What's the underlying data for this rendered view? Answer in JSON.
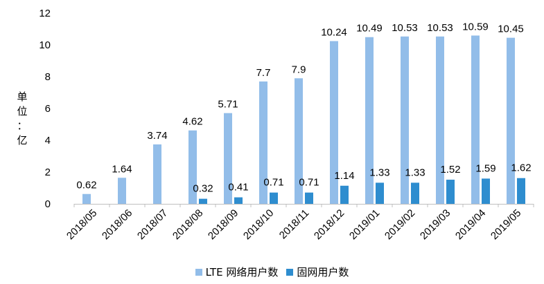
{
  "chart_data": {
    "type": "bar",
    "categories": [
      "2018/05",
      "2018/06",
      "2018/07",
      "2018/08",
      "2018/09",
      "2018/10",
      "2018/11",
      "2018/12",
      "2019/01",
      "2019/02",
      "2019/03",
      "2019/04",
      "2019/05"
    ],
    "series": [
      {
        "name": "LTE 网络用户数",
        "color": "#92bde9",
        "values": [
          0.62,
          1.64,
          3.74,
          4.62,
          5.71,
          7.7,
          7.9,
          10.24,
          10.49,
          10.53,
          10.53,
          10.59,
          10.45
        ],
        "labels": [
          "0.62",
          "1.64",
          "3.74",
          "4.62",
          "5.71",
          "7.7",
          "7.9",
          "10.24",
          "10.49",
          "10.53",
          "10.53",
          "10.59",
          "10.45"
        ]
      },
      {
        "name": "固网用户数",
        "color": "#2e8dcf",
        "values": [
          null,
          null,
          null,
          0.32,
          0.41,
          0.71,
          0.71,
          1.14,
          1.33,
          1.33,
          1.52,
          1.59,
          1.62
        ],
        "labels": [
          null,
          null,
          null,
          "0.32",
          "0.41",
          "0.71",
          "0.71",
          "1.14",
          "1.33",
          "1.33",
          "1.52",
          "1.59",
          "1.62"
        ]
      }
    ],
    "yticks": [
      "0",
      "2",
      "4",
      "6",
      "8",
      "10",
      "12"
    ],
    "ylim": [
      0,
      12
    ],
    "ylabel": "单位：亿",
    "ylabel_chars": [
      "单",
      "位",
      "：",
      "亿"
    ],
    "legend_position": "bottom",
    "grid": false
  }
}
